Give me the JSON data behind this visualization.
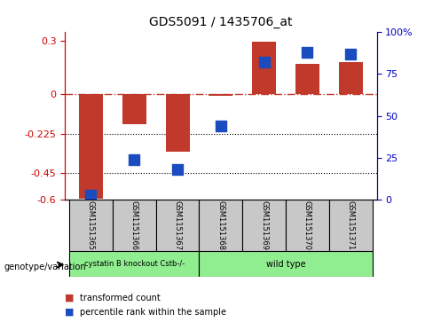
{
  "title": "GDS5091 / 1435706_at",
  "samples": [
    "GSM1151365",
    "GSM1151366",
    "GSM1151367",
    "GSM1151368",
    "GSM1151369",
    "GSM1151370",
    "GSM1151371"
  ],
  "red_values": [
    -0.595,
    -0.17,
    -0.33,
    -0.01,
    0.298,
    0.17,
    0.18
  ],
  "blue_values": [
    2.5,
    24,
    18,
    44,
    82,
    88,
    87
  ],
  "ylim_left": [
    -0.6,
    0.35
  ],
  "ylim_right": [
    0,
    100
  ],
  "left_ticks": [
    0.3,
    0,
    -0.225,
    -0.45,
    -0.6
  ],
  "right_ticks": [
    100,
    75,
    50,
    25,
    0
  ],
  "right_tick_labels": [
    "100%",
    "75",
    "50",
    "25",
    "0"
  ],
  "dotted_lines": [
    -0.225,
    -0.45
  ],
  "dashdot_line": 0,
  "bar_color": "#c0392b",
  "dot_color": "#1a4bbf",
  "bar_width": 0.55,
  "dot_size": 80,
  "xlabel_rotation": 270,
  "background_color": "#ffffff",
  "right_axis_color": "#0000cc",
  "left_axis_color": "#cc0000",
  "legend_red_label": "transformed count",
  "legend_blue_label": "percentile rank within the sample",
  "genotype_label": "genotype/variation",
  "group1_label": "cystatin B knockout Cstb-/-",
  "group2_label": "wild type",
  "group1_color": "#90ee90",
  "group2_color": "#90ee90",
  "sample_box_color": "#c8c8c8"
}
